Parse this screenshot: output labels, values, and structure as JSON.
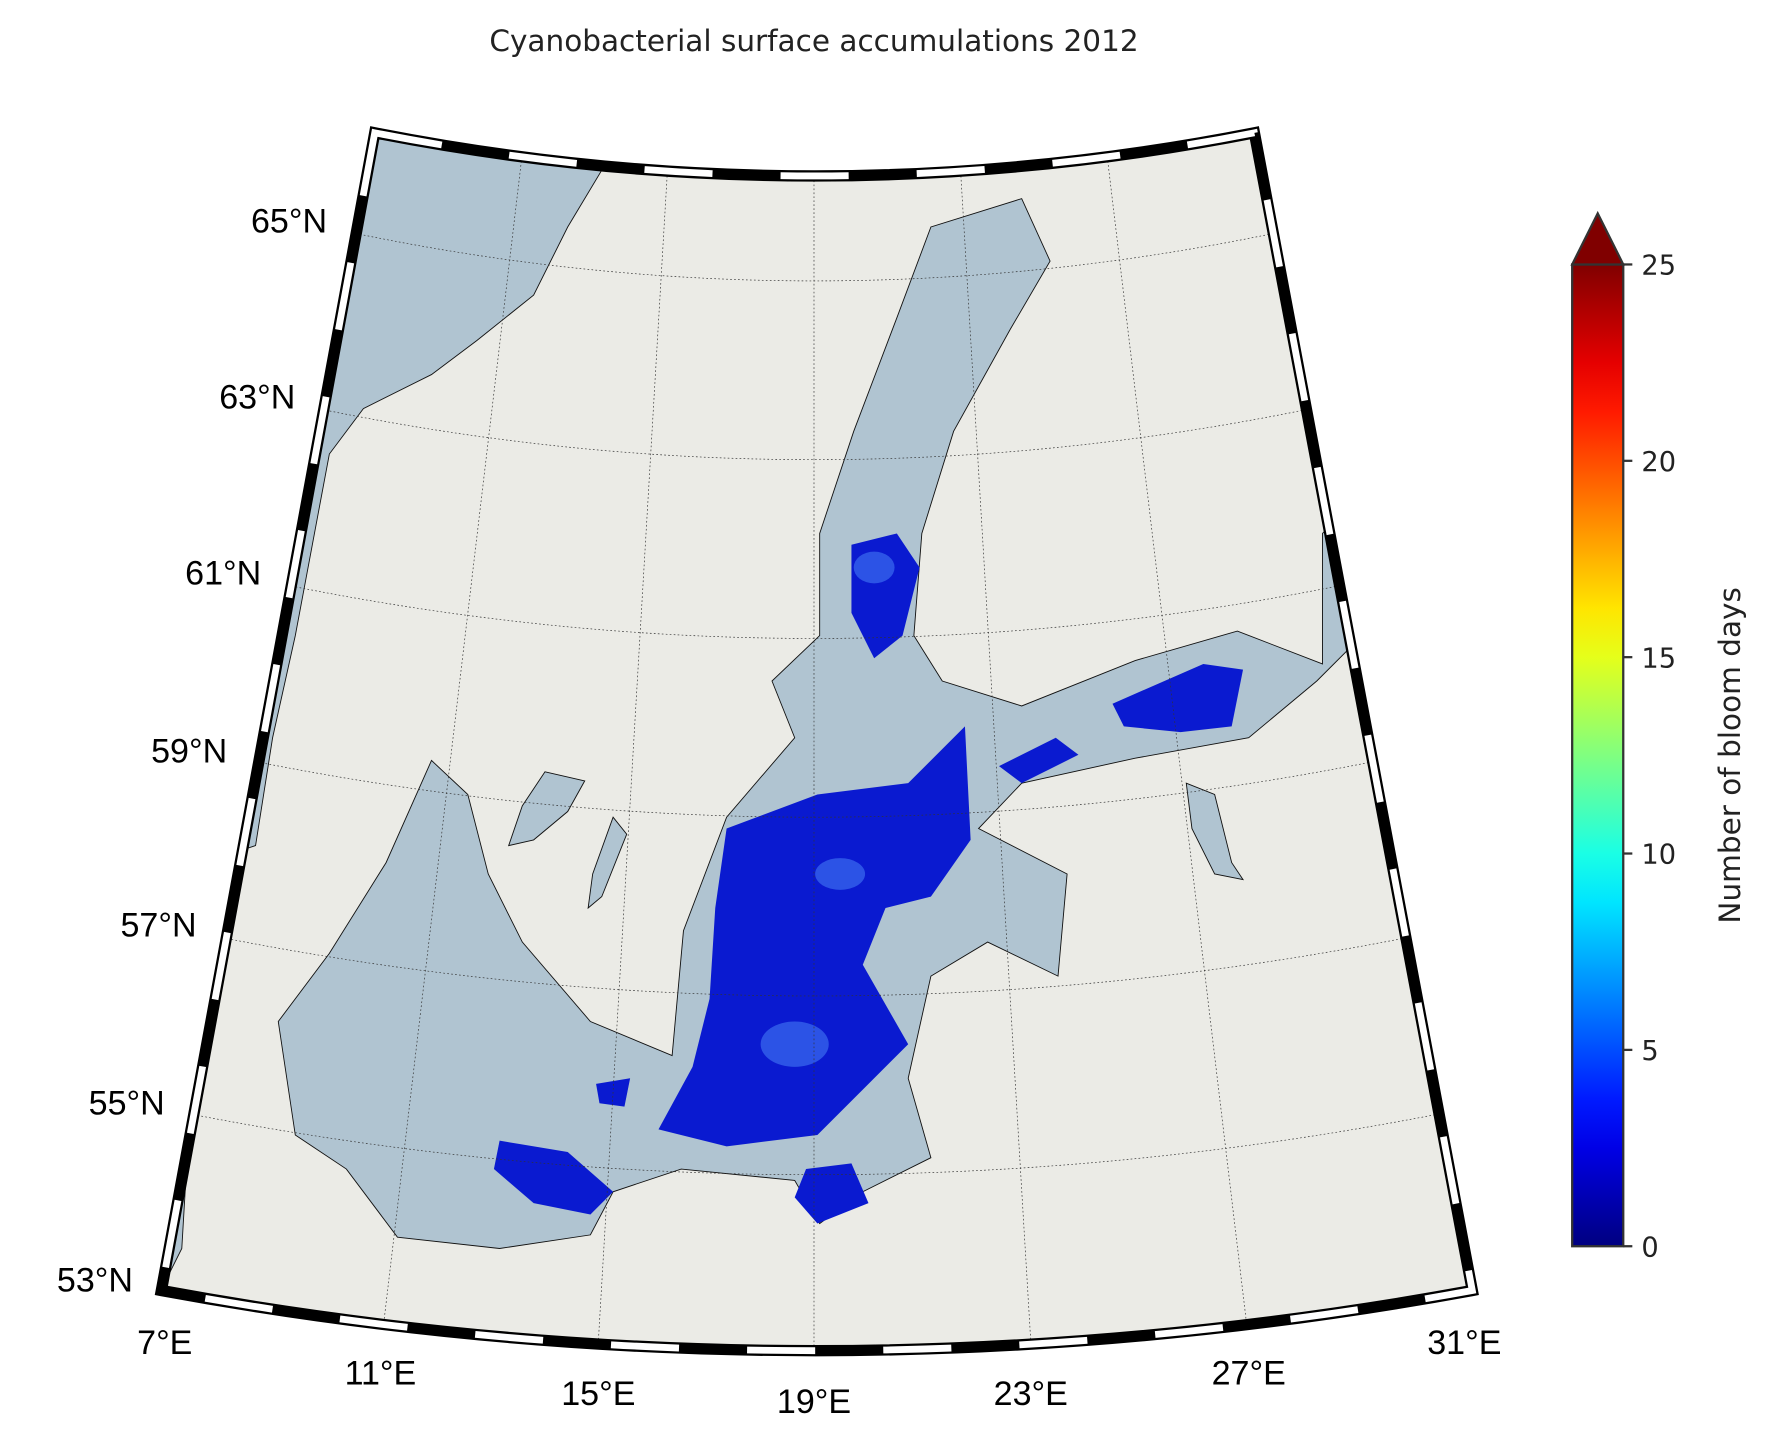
{
  "title": "Cyanobacterial surface accumulations 2012",
  "map": {
    "projection": "conic",
    "lat_labels": [
      "65°N",
      "63°N",
      "61°N",
      "59°N",
      "57°N",
      "55°N",
      "53°N"
    ],
    "lon_labels": [
      "7°E",
      "11°E",
      "15°E",
      "19°E",
      "23°E",
      "27°E",
      "31°E"
    ]
  },
  "colorbar": {
    "label": "Number of bloom days",
    "colormap": "jet",
    "clim": [
      0,
      25
    ],
    "ticks": [
      0,
      5,
      10,
      15,
      20,
      25
    ],
    "extend": "max"
  }
}
